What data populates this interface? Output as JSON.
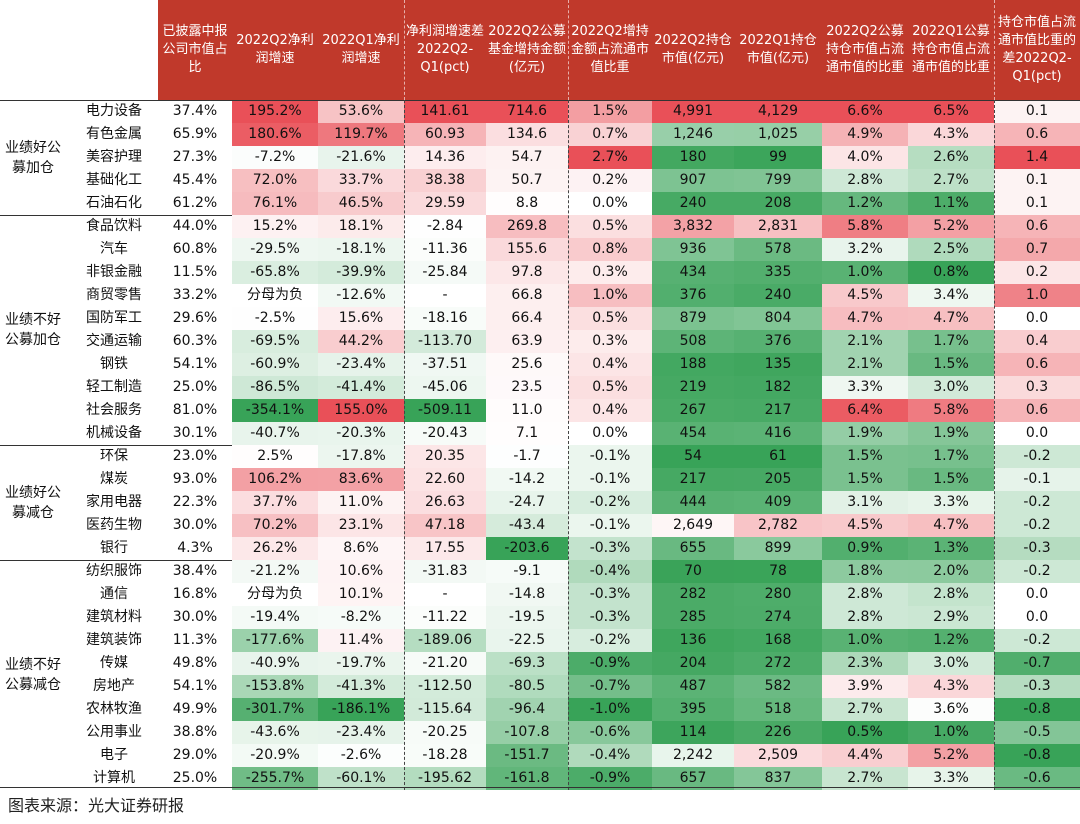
{
  "headers": [
    "已披露中报公司市值占比",
    "2022Q2净利润增速",
    "2022Q1净利润增速",
    "净利润增速差2022Q2-Q1(pct)",
    "2022Q2公募基金增持金额(亿元)",
    "2022Q2增持金额占流通市值比重",
    "2022Q2持仓市值(亿元)",
    "2022Q1持仓市值(亿元)",
    "2022Q2公募持仓市值占流通市值的比重",
    "2022Q1公募持仓市值占流通市值的比重",
    "持仓市值占流通市值比重的差2022Q2-Q1(pct)"
  ],
  "groups": [
    {
      "label": "业绩好公募加仓",
      "rows": [
        {
          "name": "电力设备",
          "v": [
            "37.4%",
            "195.2%",
            "53.6%",
            "141.61",
            "714.6",
            "1.5%",
            "4,991",
            "4,129",
            "6.6%",
            "6.5%",
            "0.1"
          ]
        },
        {
          "name": "有色金属",
          "v": [
            "65.9%",
            "180.6%",
            "119.7%",
            "60.93",
            "134.6",
            "0.7%",
            "1,246",
            "1,025",
            "4.9%",
            "4.3%",
            "0.6"
          ]
        },
        {
          "name": "美容护理",
          "v": [
            "27.3%",
            "-7.2%",
            "-21.6%",
            "14.36",
            "54.7",
            "2.7%",
            "180",
            "99",
            "4.0%",
            "2.6%",
            "1.4"
          ]
        },
        {
          "name": "基础化工",
          "v": [
            "45.4%",
            "72.0%",
            "33.7%",
            "38.38",
            "50.7",
            "0.2%",
            "907",
            "799",
            "2.8%",
            "2.7%",
            "0.1"
          ]
        },
        {
          "name": "石油石化",
          "v": [
            "61.2%",
            "76.1%",
            "46.5%",
            "29.59",
            "8.8",
            "0.0%",
            "240",
            "208",
            "1.2%",
            "1.1%",
            "0.1"
          ]
        }
      ]
    },
    {
      "label": "业绩不好公募加仓",
      "rows": [
        {
          "name": "食品饮料",
          "v": [
            "44.0%",
            "15.2%",
            "18.1%",
            "-2.84",
            "269.8",
            "0.5%",
            "3,832",
            "2,831",
            "5.8%",
            "5.2%",
            "0.6"
          ]
        },
        {
          "name": "汽车",
          "v": [
            "60.8%",
            "-29.5%",
            "-18.1%",
            "-11.36",
            "155.6",
            "0.8%",
            "936",
            "578",
            "3.2%",
            "2.5%",
            "0.7"
          ]
        },
        {
          "name": "非银金融",
          "v": [
            "11.5%",
            "-65.8%",
            "-39.9%",
            "-25.84",
            "97.8",
            "0.3%",
            "434",
            "335",
            "1.0%",
            "0.8%",
            "0.2"
          ]
        },
        {
          "name": "商贸零售",
          "v": [
            "33.2%",
            "分母为负",
            "-12.6%",
            "-",
            "66.8",
            "1.0%",
            "376",
            "240",
            "4.5%",
            "3.4%",
            "1.0"
          ]
        },
        {
          "name": "国防军工",
          "v": [
            "29.6%",
            "-2.5%",
            "15.6%",
            "-18.16",
            "66.4",
            "0.5%",
            "879",
            "804",
            "4.7%",
            "4.7%",
            "0.0"
          ]
        },
        {
          "name": "交通运输",
          "v": [
            "60.3%",
            "-69.5%",
            "44.2%",
            "-113.70",
            "63.9",
            "0.3%",
            "508",
            "376",
            "2.1%",
            "1.7%",
            "0.4"
          ]
        },
        {
          "name": "钢铁",
          "v": [
            "54.1%",
            "-60.9%",
            "-23.4%",
            "-37.51",
            "25.6",
            "0.4%",
            "188",
            "135",
            "2.1%",
            "1.5%",
            "0.6"
          ]
        },
        {
          "name": "轻工制造",
          "v": [
            "25.0%",
            "-86.5%",
            "-41.4%",
            "-45.06",
            "23.5",
            "0.5%",
            "219",
            "182",
            "3.3%",
            "3.0%",
            "0.3"
          ]
        },
        {
          "name": "社会服务",
          "v": [
            "81.0%",
            "-354.1%",
            "155.0%",
            "-509.11",
            "11.0",
            "0.4%",
            "267",
            "217",
            "6.4%",
            "5.8%",
            "0.6"
          ]
        },
        {
          "name": "机械设备",
          "v": [
            "30.1%",
            "-40.7%",
            "-20.3%",
            "-20.43",
            "7.1",
            "0.0%",
            "454",
            "416",
            "1.9%",
            "1.9%",
            "0.0"
          ]
        }
      ]
    },
    {
      "label": "业绩好公募减仓",
      "rows": [
        {
          "name": "环保",
          "v": [
            "23.0%",
            "2.5%",
            "-17.8%",
            "20.35",
            "-1.7",
            "-0.1%",
            "54",
            "61",
            "1.5%",
            "1.7%",
            "-0.2"
          ]
        },
        {
          "name": "煤炭",
          "v": [
            "93.0%",
            "106.2%",
            "83.6%",
            "22.60",
            "-14.2",
            "-0.1%",
            "217",
            "205",
            "1.5%",
            "1.5%",
            "-0.1"
          ]
        },
        {
          "name": "家用电器",
          "v": [
            "22.3%",
            "37.7%",
            "11.0%",
            "26.63",
            "-24.7",
            "-0.2%",
            "444",
            "409",
            "3.1%",
            "3.3%",
            "-0.2"
          ]
        },
        {
          "name": "医药生物",
          "v": [
            "30.0%",
            "70.2%",
            "23.1%",
            "47.18",
            "-43.4",
            "-0.1%",
            "2,649",
            "2,782",
            "4.5%",
            "4.7%",
            "-0.2"
          ]
        },
        {
          "name": "银行",
          "v": [
            "4.3%",
            "26.2%",
            "8.6%",
            "17.55",
            "-203.6",
            "-0.3%",
            "655",
            "899",
            "0.9%",
            "1.3%",
            "-0.3"
          ]
        }
      ]
    },
    {
      "label": "业绩不好公募减仓",
      "rows": [
        {
          "name": "纺织服饰",
          "v": [
            "38.4%",
            "-21.2%",
            "10.6%",
            "-31.83",
            "-9.1",
            "-0.4%",
            "70",
            "78",
            "1.8%",
            "2.0%",
            "-0.2"
          ]
        },
        {
          "name": "通信",
          "v": [
            "16.8%",
            "分母为负",
            "10.1%",
            "-",
            "-14.8",
            "-0.3%",
            "282",
            "280",
            "2.8%",
            "2.8%",
            "0.0"
          ]
        },
        {
          "name": "建筑材料",
          "v": [
            "30.0%",
            "-19.4%",
            "-8.2%",
            "-11.22",
            "-19.5",
            "-0.3%",
            "285",
            "274",
            "2.8%",
            "2.9%",
            "0.0"
          ]
        },
        {
          "name": "建筑装饰",
          "v": [
            "11.3%",
            "-177.6%",
            "11.4%",
            "-189.06",
            "-22.5",
            "-0.2%",
            "136",
            "168",
            "1.0%",
            "1.2%",
            "-0.2"
          ]
        },
        {
          "name": "传媒",
          "v": [
            "49.8%",
            "-40.9%",
            "-19.7%",
            "-21.20",
            "-69.3",
            "-0.9%",
            "204",
            "272",
            "2.3%",
            "3.0%",
            "-0.7"
          ]
        },
        {
          "name": "房地产",
          "v": [
            "54.1%",
            "-153.8%",
            "-41.3%",
            "-112.50",
            "-80.5",
            "-0.7%",
            "487",
            "582",
            "3.9%",
            "4.3%",
            "-0.3"
          ]
        },
        {
          "name": "农林牧渔",
          "v": [
            "49.9%",
            "-301.7%",
            "-186.1%",
            "-115.64",
            "-96.4",
            "-1.0%",
            "395",
            "518",
            "2.7%",
            "3.6%",
            "-0.8"
          ]
        },
        {
          "name": "公用事业",
          "v": [
            "38.8%",
            "-43.6%",
            "-23.4%",
            "-20.25",
            "-107.8",
            "-0.6%",
            "114",
            "226",
            "0.5%",
            "1.0%",
            "-0.5"
          ]
        },
        {
          "name": "电子",
          "v": [
            "29.0%",
            "-20.9%",
            "-2.6%",
            "-18.28",
            "-151.7",
            "-0.4%",
            "2,242",
            "2,509",
            "4.4%",
            "5.2%",
            "-0.8"
          ]
        },
        {
          "name": "计算机",
          "v": [
            "25.0%",
            "-255.7%",
            "-60.1%",
            "-195.62",
            "-161.8",
            "-0.9%",
            "657",
            "837",
            "2.7%",
            "3.3%",
            "-0.6"
          ]
        }
      ]
    }
  ],
  "source": "图表来源：光大证券研报",
  "colors": {
    "header": "#c0392b",
    "pos": "#e8474f",
    "neg": "#2e9e4f",
    "mid": "#ffffff"
  }
}
